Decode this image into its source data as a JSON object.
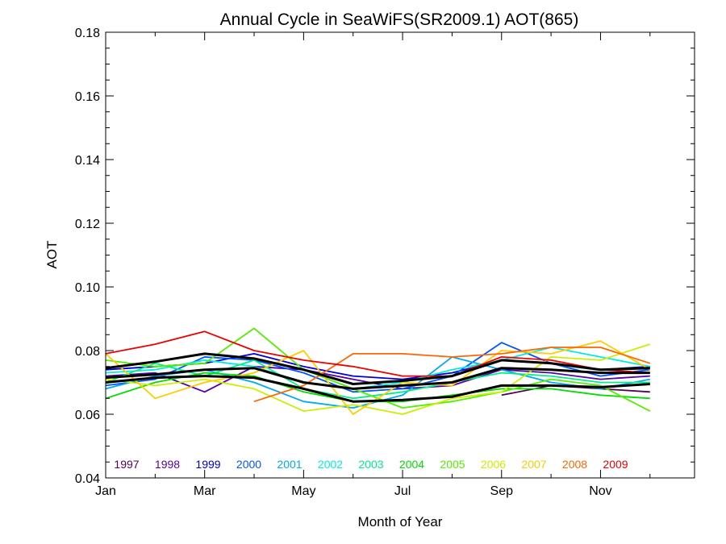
{
  "chart_data": {
    "type": "line",
    "title": "Annual Cycle in SeaWiFS(SR2009.1) AOT(865)",
    "xlabel": "Month of Year",
    "ylabel": "AOT",
    "xlim": [
      1,
      12.9
    ],
    "ylim": [
      0.04,
      0.18
    ],
    "x_ticks": [
      {
        "value": 1,
        "label": "Jan"
      },
      {
        "value": 3,
        "label": "Mar"
      },
      {
        "value": 5,
        "label": "May"
      },
      {
        "value": 7,
        "label": "Jul"
      },
      {
        "value": 9,
        "label": "Sep"
      },
      {
        "value": 11,
        "label": "Nov"
      }
    ],
    "y_ticks": [
      {
        "value": 0.04,
        "label": "0.04"
      },
      {
        "value": 0.06,
        "label": "0.06"
      },
      {
        "value": 0.08,
        "label": "0.08"
      },
      {
        "value": 0.1,
        "label": "0.10"
      },
      {
        "value": 0.12,
        "label": "0.12"
      },
      {
        "value": 0.14,
        "label": "0.14"
      },
      {
        "value": 0.16,
        "label": "0.16"
      },
      {
        "value": 0.18,
        "label": "0.18"
      }
    ],
    "grid": false,
    "legend_position": "bottom-inside",
    "x": [
      1,
      2,
      3,
      4,
      5,
      6,
      7,
      8,
      9,
      10,
      11,
      12
    ],
    "series": [
      {
        "name": "1997",
        "color": "#550055",
        "values": [
          null,
          null,
          null,
          null,
          null,
          null,
          null,
          null,
          0.066,
          0.069,
          0.068,
          0.067
        ]
      },
      {
        "name": "1998",
        "color": "#5500aa",
        "values": [
          0.072,
          0.073,
          0.067,
          0.075,
          0.074,
          0.071,
          0.068,
          0.069,
          0.074,
          0.073,
          0.071,
          0.072
        ]
      },
      {
        "name": "1999",
        "color": "#0000dd",
        "values": [
          0.074,
          0.075,
          0.076,
          0.079,
          0.075,
          0.072,
          0.071,
          0.073,
          0.077,
          0.076,
          0.074,
          0.075
        ]
      },
      {
        "name": "2000",
        "color": "#0055ff",
        "values": [
          0.069,
          0.071,
          0.078,
          0.077,
          0.073,
          0.067,
          0.068,
          0.072,
          0.0825,
          0.076,
          0.072,
          0.074
        ]
      },
      {
        "name": "2001",
        "color": "#00aaee",
        "values": [
          0.068,
          0.072,
          0.074,
          0.07,
          0.064,
          0.062,
          0.066,
          0.078,
          0.074,
          0.07,
          0.068,
          0.071
        ]
      },
      {
        "name": "2002",
        "color": "#00eedd",
        "values": [
          0.073,
          0.074,
          0.077,
          0.075,
          0.07,
          0.068,
          0.07,
          0.074,
          0.077,
          0.081,
          0.078,
          0.075
        ]
      },
      {
        "name": "2003",
        "color": "#00ee88",
        "values": [
          0.07,
          0.076,
          0.072,
          0.077,
          0.068,
          0.065,
          0.067,
          0.07,
          0.073,
          0.072,
          0.07,
          0.07
        ]
      },
      {
        "name": "2004",
        "color": "#00dd00",
        "values": [
          0.065,
          0.07,
          0.073,
          0.072,
          0.067,
          0.064,
          0.064,
          0.066,
          0.068,
          0.068,
          0.066,
          0.065
        ]
      },
      {
        "name": "2005",
        "color": "#55ee00",
        "values": [
          0.077,
          0.075,
          0.076,
          0.087,
          0.074,
          0.068,
          0.062,
          0.064,
          0.067,
          0.071,
          0.069,
          0.061
        ]
      },
      {
        "name": "2006",
        "color": "#ccee00",
        "values": [
          0.071,
          0.069,
          0.071,
          0.068,
          0.061,
          0.063,
          0.06,
          0.065,
          0.067,
          0.078,
          0.077,
          0.082
        ]
      },
      {
        "name": "2007",
        "color": "#ffcc00",
        "values": [
          0.079,
          0.065,
          0.07,
          0.073,
          0.08,
          0.06,
          0.07,
          0.069,
          0.08,
          0.079,
          0.083,
          0.074
        ]
      },
      {
        "name": "2008",
        "color": "#ff6600",
        "values": [
          null,
          null,
          null,
          0.064,
          0.069,
          0.079,
          0.079,
          0.078,
          0.079,
          0.081,
          0.081,
          0.076
        ]
      },
      {
        "name": "2009",
        "color": "#ee0000",
        "values": [
          0.079,
          0.082,
          0.086,
          0.08,
          0.077,
          0.075,
          0.072,
          0.072,
          0.078,
          0.077,
          0.074,
          0.073
        ]
      },
      {
        "name": "",
        "color": "#000000",
        "width": 3,
        "values": [
          0.0745,
          0.0765,
          0.079,
          0.0775,
          0.074,
          0.0695,
          0.0705,
          0.072,
          0.077,
          0.076,
          0.074,
          0.0745
        ]
      },
      {
        "name": "",
        "color": "#000000",
        "width": 3,
        "values": [
          0.0715,
          0.0725,
          0.074,
          0.0745,
          0.07,
          0.068,
          0.069,
          0.07,
          0.0745,
          0.074,
          0.073,
          0.073
        ]
      },
      {
        "name": "",
        "color": "#000000",
        "width": 3,
        "values": [
          0.07,
          0.0715,
          0.072,
          0.0715,
          0.068,
          0.064,
          0.0645,
          0.0655,
          0.069,
          0.069,
          0.0685,
          0.0695
        ]
      }
    ]
  }
}
